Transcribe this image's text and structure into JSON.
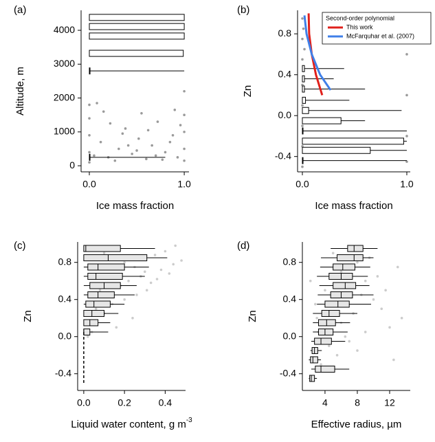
{
  "chart_data": [
    {
      "type": "boxplot",
      "panel_label": "(a)",
      "xlabel": "Ice mass fraction",
      "ylabel": "Altitude, m",
      "xlim": [
        -0.087,
        1.05
      ],
      "ylim": [
        -180,
        4590
      ],
      "xticks": [
        {
          "value": 0,
          "label": "0.0"
        },
        {
          "value": 1,
          "label": "1.0"
        }
      ],
      "yticks": [
        0,
        1000,
        2000,
        3000,
        4000
      ],
      "points": {
        "color": "#9a9a9a",
        "x": [
          0,
          0,
          0,
          0,
          0,
          1,
          1,
          1,
          1,
          1,
          0.05,
          0.12,
          0.2,
          0.31,
          0.38,
          0.45,
          0.52,
          0.6,
          0.66,
          0.72,
          0.8,
          0.88,
          0.93,
          0.15,
          0.27,
          0.41,
          0.55,
          0.7,
          0.85,
          0.96,
          0.08,
          0.35,
          0.62,
          0.77,
          0.5,
          0.22,
          0.9
        ],
        "y": [
          100,
          400,
          900,
          1400,
          1800,
          150,
          500,
          1000,
          1500,
          2200,
          300,
          700,
          250,
          500,
          1100,
          350,
          800,
          200,
          600,
          1300,
          400,
          900,
          250,
          1600,
          150,
          600,
          1550,
          300,
          700,
          1200,
          1850,
          950,
          1050,
          180,
          450,
          1250,
          1650
        ]
      },
      "boxes": [
        {
          "y": 4380,
          "q1": 0,
          "q3": 1,
          "whisker_high": 1
        },
        {
          "y": 4110,
          "q1": 0,
          "q3": 1,
          "whisker_high": 1
        },
        {
          "y": 3830,
          "q1": 0,
          "q3": 1,
          "whisker_high": 1
        },
        {
          "y": 3320,
          "q1": 0,
          "q3": 0.99,
          "whisker_high": 0.99
        },
        {
          "y": 2800,
          "q1": 0,
          "q3": 0,
          "whisker_high": 1
        },
        {
          "y": 250,
          "q1": 0,
          "q3": 0,
          "whisker_high": 0.8
        }
      ]
    },
    {
      "type": "boxplot",
      "panel_label": "(b)",
      "xlabel": "Ice mass fraction",
      "ylabel": "Zn",
      "xlim": [
        -0.046,
        1.033
      ],
      "ylim": [
        -0.55,
        1.03
      ],
      "xticks": [
        {
          "value": 0,
          "label": "0.0"
        },
        {
          "value": 1,
          "label": "1.0"
        }
      ],
      "yticks": [
        -0.4,
        {
          "value": 0,
          "label": "0.0"
        },
        0.4,
        0.8
      ],
      "points": {
        "color": "#9a9a9a",
        "x": [
          0,
          0,
          0,
          0,
          0,
          0,
          0,
          0,
          1,
          1,
          1,
          1,
          1,
          0.01,
          0.02
        ],
        "y": [
          0.95,
          0.75,
          0.55,
          0.3,
          0.1,
          -0.1,
          -0.3,
          -0.5,
          0.9,
          0.6,
          0.2,
          -0.2,
          -0.45,
          0.85,
          0.65
        ]
      },
      "boxes": [
        {
          "y": 0.46,
          "q1": 0,
          "q3": 0.02,
          "whisker_high": 0.4
        },
        {
          "y": 0.36,
          "q1": 0,
          "q3": 0.02,
          "whisker_high": 0.3
        },
        {
          "y": 0.26,
          "q1": 0,
          "q3": 0.02,
          "whisker_high": 0.6
        },
        {
          "y": 0.15,
          "q1": 0,
          "q3": 0.03,
          "whisker_high": 0.45
        },
        {
          "y": 0.05,
          "q1": 0,
          "q3": 0.06,
          "whisker_high": 0.95
        },
        {
          "y": -0.05,
          "q1": 0,
          "q3": 0.37,
          "whisker_high": 0.6
        },
        {
          "y": -0.15,
          "q1": 0,
          "q3": 0,
          "whisker_high": 1
        },
        {
          "y": -0.25,
          "q1": 0,
          "q3": 0.97,
          "whisker_high": 1
        },
        {
          "y": -0.34,
          "q1": 0,
          "q3": 0.65,
          "whisker_high": 1
        },
        {
          "y": -0.44,
          "q1": 0,
          "q3": 0,
          "whisker_high": 1
        }
      ],
      "legend_title": "Second-order polynomial",
      "legend": "upper right",
      "lines": [
        {
          "name": "This work",
          "color": "#e0201b",
          "x": [
            0.19,
            0.13,
            0.09,
            0.065,
            0.06
          ],
          "y": [
            0.2,
            0.4,
            0.6,
            0.8,
            1.0
          ]
        },
        {
          "name": "McFarquhar et al. (2007)",
          "color": "#3f7fe8",
          "x": [
            0.27,
            0.17,
            0.09,
            0.04,
            0.02
          ],
          "y": [
            0.25,
            0.4,
            0.6,
            0.8,
            0.98
          ]
        }
      ]
    },
    {
      "type": "boxplot",
      "panel_label": "(c)",
      "xlabel": "Liquid water content, g m",
      "xlabel_superscript": "-3",
      "ylabel": "Zn",
      "xlim": [
        -0.03,
        0.5
      ],
      "ylim": [
        -0.58,
        1.02
      ],
      "xticks": [
        {
          "value": 0,
          "label": "0.0"
        },
        0.2,
        0.4
      ],
      "yticks": [
        -0.4,
        {
          "value": 0,
          "label": "0.0"
        },
        0.4,
        0.8
      ],
      "points": {
        "color": "#cccccc",
        "x": [
          0.05,
          0.1,
          0.15,
          0.2,
          0.25,
          0.3,
          0.35,
          0.4,
          0.45,
          0.48,
          0.08,
          0.12,
          0.18,
          0.22,
          0.28,
          0.33,
          0.38,
          0.42,
          0.06,
          0.1,
          0.14,
          0.2,
          0.26,
          0.31,
          0.16,
          0.24,
          0.36,
          0.44,
          0.02,
          0.04
        ],
        "y": [
          0.95,
          0.9,
          0.85,
          0.8,
          0.75,
          0.7,
          0.88,
          0.92,
          0.98,
          0.82,
          0.5,
          0.45,
          0.55,
          0.6,
          0.65,
          0.58,
          0.72,
          0.68,
          0.3,
          0.25,
          0.35,
          0.4,
          0.45,
          0.5,
          0.1,
          0.2,
          0.62,
          0.78,
          0.0,
          0.05
        ]
      },
      "boxes": [
        {
          "y": 0.95,
          "whisker_low": 0,
          "q1": 0,
          "median": 0.01,
          "q3": 0.18,
          "whisker_high": 0.35
        },
        {
          "y": 0.85,
          "whisker_low": 0,
          "q1": 0,
          "median": 0.12,
          "q3": 0.31,
          "whisker_high": 0.41
        },
        {
          "y": 0.75,
          "whisker_low": 0,
          "q1": 0.02,
          "median": 0.07,
          "q3": 0.2,
          "whisker_high": 0.32
        },
        {
          "y": 0.65,
          "whisker_low": 0,
          "q1": 0.02,
          "median": 0.06,
          "q3": 0.19,
          "whisker_high": 0.3
        },
        {
          "y": 0.55,
          "whisker_low": 0,
          "q1": 0.03,
          "median": 0.1,
          "q3": 0.18,
          "whisker_high": 0.26
        },
        {
          "y": 0.45,
          "whisker_low": 0,
          "q1": 0.02,
          "median": 0.07,
          "q3": 0.15,
          "whisker_high": 0.25
        },
        {
          "y": 0.35,
          "whisker_low": 0,
          "q1": 0.01,
          "median": 0.05,
          "q3": 0.13,
          "whisker_high": 0.2
        },
        {
          "y": 0.25,
          "whisker_low": 0,
          "q1": 0,
          "median": 0.04,
          "q3": 0.1,
          "whisker_high": 0.17
        },
        {
          "y": 0.15,
          "whisker_low": 0,
          "q1": 0,
          "median": 0.03,
          "q3": 0.07,
          "whisker_high": 0.13
        },
        {
          "y": 0.05,
          "whisker_low": 0,
          "q1": 0,
          "median": 0,
          "q3": 0.03,
          "whisker_high": 0.12
        }
      ],
      "lines": [
        {
          "color": "#000000",
          "dash": true,
          "x": [
            0,
            0
          ],
          "y": [
            0.05,
            -0.5
          ]
        }
      ]
    },
    {
      "type": "boxplot",
      "panel_label": "(d)",
      "xlabel": "Effective radius, µm",
      "ylabel": "Zn",
      "xlim": [
        1.2,
        14.55
      ],
      "ylim": [
        -0.58,
        1.02
      ],
      "xticks": [
        4,
        8,
        12
      ],
      "yticks": [
        -0.4,
        {
          "value": 0,
          "label": "0.0"
        },
        0.4,
        0.8
      ],
      "points": {
        "color": "#cccccc",
        "x": [
          3,
          4,
          5,
          6,
          7,
          8,
          9,
          10,
          11,
          12,
          13,
          5.5,
          6.5,
          7.5,
          8.5,
          9.5,
          10.5,
          4.5,
          3.5,
          2.5,
          2.2,
          2.8,
          3.2,
          6,
          7,
          8,
          11.5,
          12.5,
          13.5,
          9
        ],
        "y": [
          0.2,
          0.5,
          0.9,
          0.7,
          0.95,
          0.8,
          0.6,
          0.4,
          0.3,
          0.1,
          0.75,
          -0.2,
          0.0,
          0.25,
          0.45,
          0.85,
          0.65,
          -0.1,
          -0.3,
          -0.45,
          0.6,
          0.35,
          0.05,
          0.15,
          -0.05,
          -0.15,
          0.5,
          -0.25,
          0.2,
          0.05
        ]
      },
      "boxes": [
        {
          "y": 0.95,
          "whisker_low": 4.7,
          "q1": 6.8,
          "median": 7.6,
          "q3": 8.7,
          "whisker_high": 10.5
        },
        {
          "y": 0.85,
          "whisker_low": 3.5,
          "q1": 5.5,
          "median": 7.6,
          "q3": 8.7,
          "whisker_high": 10
        },
        {
          "y": 0.75,
          "whisker_low": 3.4,
          "q1": 5,
          "median": 6.2,
          "q3": 7.7,
          "whisker_high": 9.6
        },
        {
          "y": 0.65,
          "whisker_low": 3,
          "q1": 4.5,
          "median": 6,
          "q3": 7.4,
          "whisker_high": 9.3
        },
        {
          "y": 0.55,
          "whisker_low": 3.3,
          "q1": 5,
          "median": 6.5,
          "q3": 7.8,
          "whisker_high": 9.5
        },
        {
          "y": 0.45,
          "whisker_low": 3.1,
          "q1": 4.7,
          "median": 6,
          "q3": 7.4,
          "whisker_high": 10
        },
        {
          "y": 0.35,
          "whisker_low": 3,
          "q1": 4,
          "median": 5.6,
          "q3": 7,
          "whisker_high": 9.7
        },
        {
          "y": 0.25,
          "whisker_low": 2.5,
          "q1": 3.6,
          "median": 4.5,
          "q3": 5.8,
          "whisker_high": 8
        },
        {
          "y": 0.15,
          "whisker_low": 2.5,
          "q1": 3.2,
          "median": 4.2,
          "q3": 5.3,
          "whisker_high": 7.1
        },
        {
          "y": 0.05,
          "whisker_low": 2.5,
          "q1": 3.2,
          "median": 4,
          "q3": 5,
          "whisker_high": 6.8
        },
        {
          "y": -0.05,
          "whisker_low": 2.3,
          "q1": 2.7,
          "median": 3.5,
          "q3": 4.8,
          "whisker_high": 6.5
        },
        {
          "y": -0.15,
          "whisker_low": 2.2,
          "q1": 2.4,
          "median": 2.7,
          "q3": 3.1,
          "whisker_high": 3.6
        },
        {
          "y": -0.25,
          "whisker_low": 2,
          "q1": 2.2,
          "median": 2.5,
          "q3": 3.1,
          "whisker_high": 3.5
        },
        {
          "y": -0.35,
          "whisker_low": 2.3,
          "q1": 2.8,
          "median": 3.5,
          "q3": 5.2,
          "whisker_high": 7
        },
        {
          "y": -0.45,
          "whisker_low": 2,
          "q1": 2.1,
          "median": 2.3,
          "q3": 2.7,
          "whisker_high": 3
        }
      ]
    }
  ]
}
